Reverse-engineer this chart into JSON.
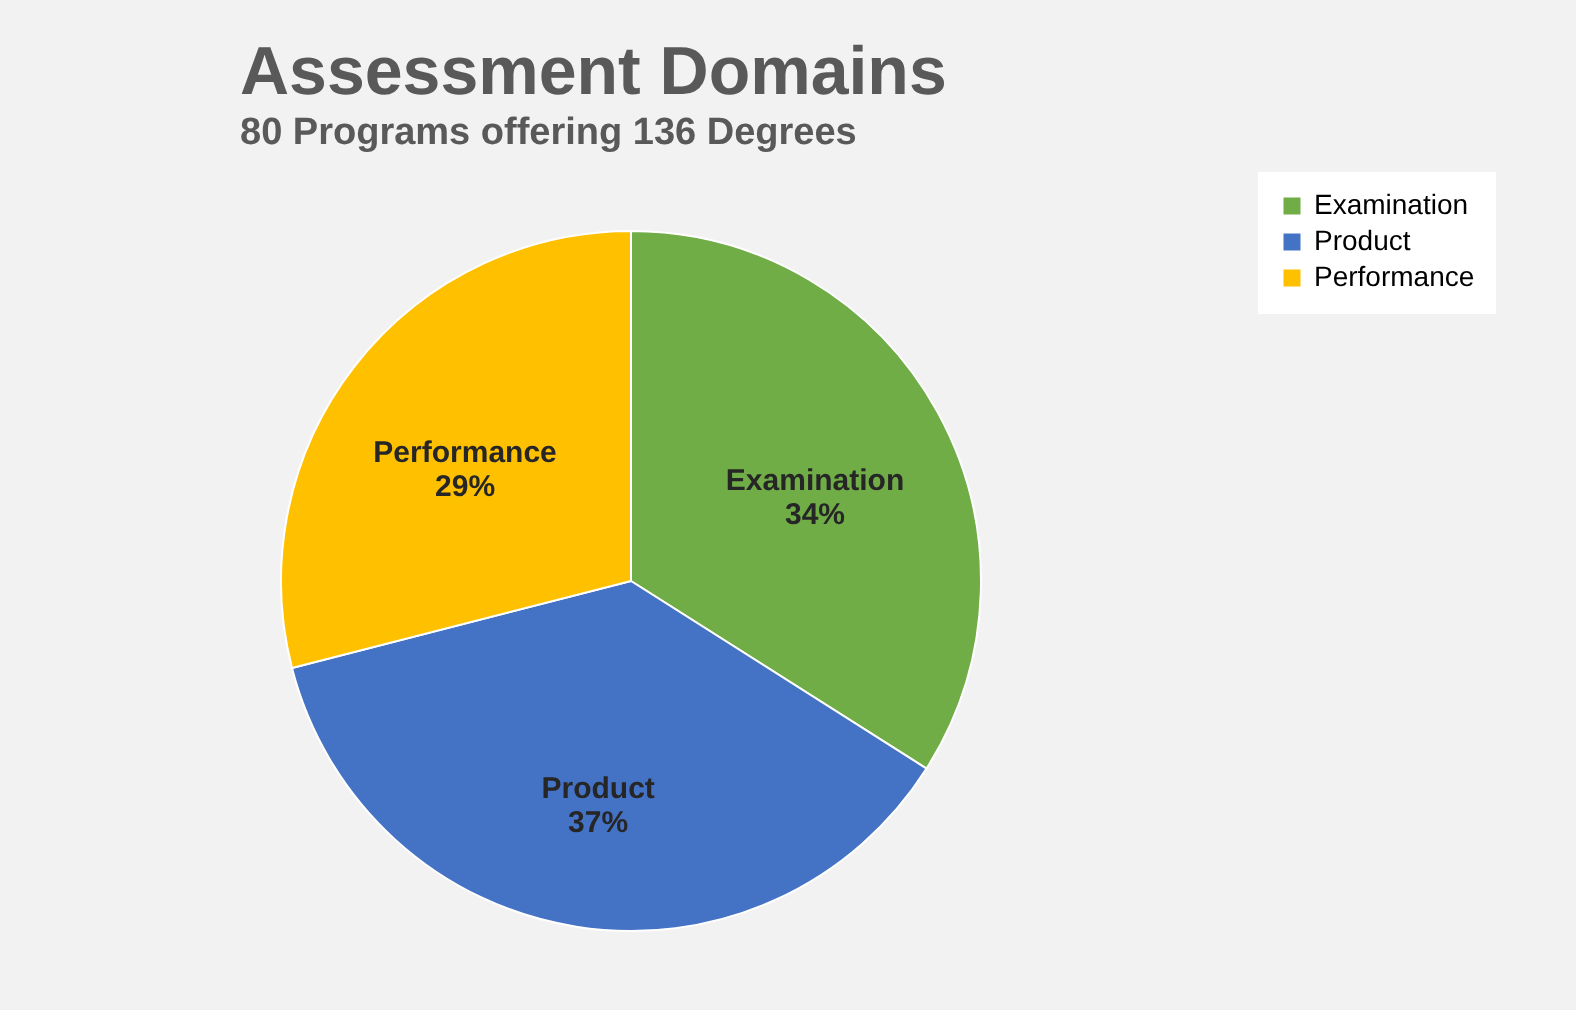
{
  "chart_data": {
    "type": "pie",
    "title": "Assessment Domains",
    "subtitle": "80 Programs offering 136 Degrees",
    "categories": [
      "Examination",
      "Product",
      "Performance"
    ],
    "values": [
      34,
      37,
      29
    ],
    "value_labels": [
      "34%",
      "37%",
      "29%"
    ],
    "colors": [
      "#70ad47",
      "#4472c4",
      "#ffc000"
    ],
    "legend": "right"
  }
}
